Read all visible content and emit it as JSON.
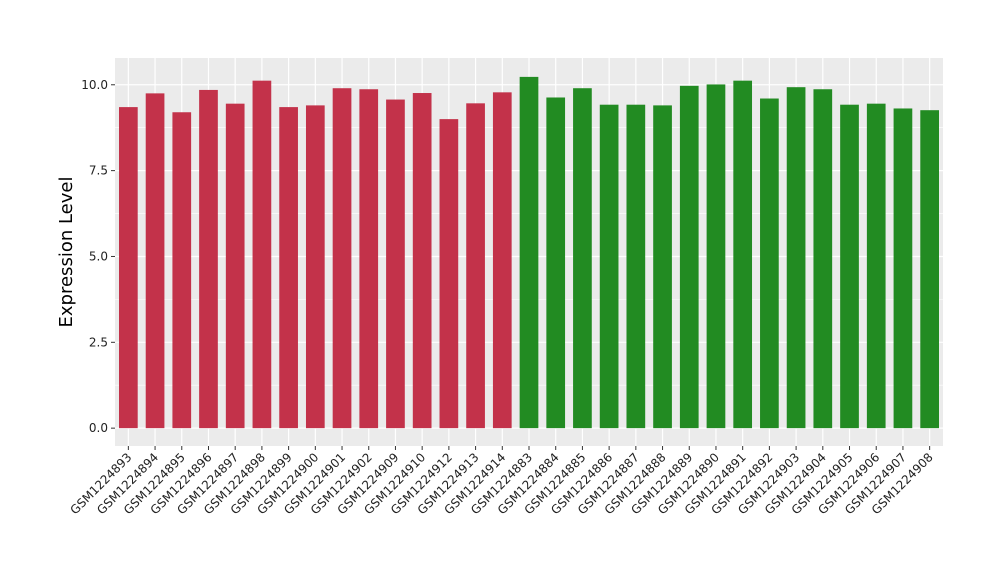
{
  "chart_data": {
    "type": "bar",
    "title": "",
    "xlabel": "",
    "ylabel": "Expression Level",
    "ylim": [
      0,
      10.5
    ],
    "yticks": [
      0.0,
      2.5,
      5.0,
      7.5,
      10.0
    ],
    "ytick_labels": [
      "0.0",
      "2.5",
      "5.0",
      "7.5",
      "10.0"
    ],
    "grid": true,
    "legend": "none",
    "background_color": "#ebebeb",
    "grid_color": "#ffffff",
    "categories": [
      "GSM1224893",
      "GSM1224894",
      "GSM1224895",
      "GSM1224896",
      "GSM1224897",
      "GSM1224898",
      "GSM1224899",
      "GSM1224900",
      "GSM1224901",
      "GSM1224902",
      "GSM1224909",
      "GSM1224910",
      "GSM1224912",
      "GSM1224913",
      "GSM1224914",
      "GSM1224883",
      "GSM1224884",
      "GSM1224885",
      "GSM1224886",
      "GSM1224887",
      "GSM1224888",
      "GSM1224889",
      "GSM1224890",
      "GSM1224891",
      "GSM1224892",
      "GSM1224903",
      "GSM1224904",
      "GSM1224905",
      "GSM1224906",
      "GSM1224907",
      "GSM1224908"
    ],
    "values": [
      9.35,
      9.75,
      9.2,
      9.85,
      9.45,
      10.12,
      9.35,
      9.4,
      9.9,
      9.87,
      9.57,
      9.76,
      9.0,
      9.46,
      9.78,
      10.23,
      9.63,
      9.9,
      9.42,
      9.42,
      9.4,
      9.97,
      10.01,
      10.12,
      9.6,
      9.93,
      9.87,
      9.42,
      9.45,
      9.31,
      9.26
    ],
    "bar_colors": [
      "#c3324a",
      "#c3324a",
      "#c3324a",
      "#c3324a",
      "#c3324a",
      "#c3324a",
      "#c3324a",
      "#c3324a",
      "#c3324a",
      "#c3324a",
      "#c3324a",
      "#c3324a",
      "#c3324a",
      "#c3324a",
      "#c3324a",
      "#228b22",
      "#228b22",
      "#228b22",
      "#228b22",
      "#228b22",
      "#228b22",
      "#228b22",
      "#228b22",
      "#228b22",
      "#228b22",
      "#228b22",
      "#228b22",
      "#228b22",
      "#228b22",
      "#228b22",
      "#228b22"
    ]
  }
}
